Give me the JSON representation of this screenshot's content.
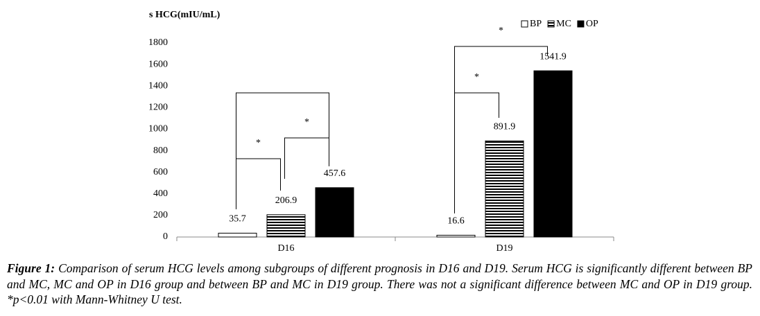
{
  "chart_data": {
    "type": "bar",
    "y_label": "s HCG(mIU/mL)",
    "categories": [
      "D16",
      "D19"
    ],
    "series": [
      {
        "name": "BP",
        "color": "#ffffff",
        "values": [
          35.7,
          16.6
        ]
      },
      {
        "name": "MC",
        "color": "#000000",
        "pattern": "horizontal-stripes",
        "values": [
          206.9,
          891.9
        ]
      },
      {
        "name": "OP",
        "color": "#000000",
        "values": [
          457.6,
          1541.9
        ]
      }
    ],
    "ylim": [
      0,
      1800
    ],
    "yticks": [
      0,
      200,
      400,
      600,
      800,
      1000,
      1200,
      1400,
      1600,
      1800
    ],
    "grid": false,
    "legend": "top-right",
    "annotations": [
      "*",
      "*",
      "*",
      "*"
    ]
  },
  "caption": {
    "label": "Figure 1:",
    "text": "Comparison of serum HCG levels among subgroups of different prognosis in D16 and D19. Serum HCG is significantly different between BP and MC, MC and OP in D16 group and between BP and MC in D19 group. There was not a significant difference between MC and OP in D19 group. *p<0.01 with Mann-Whitney U test."
  }
}
